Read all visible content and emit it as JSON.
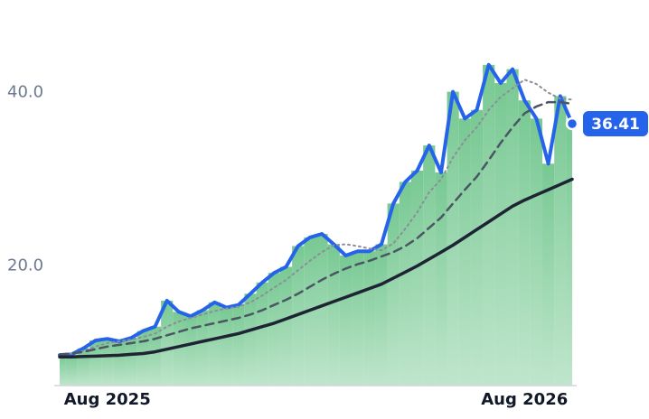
{
  "chart_data": {
    "type": "line",
    "categories": [
      null,
      null,
      null,
      null,
      "Aug 2025",
      null,
      null,
      null,
      null,
      null,
      null,
      null,
      null,
      null,
      null,
      null,
      null,
      null,
      null,
      null,
      null,
      null,
      null,
      null,
      null,
      null,
      null,
      null,
      null,
      null,
      null,
      null,
      null,
      null,
      null,
      null,
      null,
      null,
      null,
      "Aug 2026",
      null,
      null,
      null,
      null
    ],
    "series": [
      {
        "color": "#2563eb",
        "style": "solid",
        "width": 4,
        "area": true,
        "values": [
          9.7,
          9.8,
          10.5,
          11.4,
          11.6,
          11.3,
          11.7,
          12.5,
          13.0,
          16.0,
          14.7,
          14.2,
          14.9,
          15.8,
          15.2,
          15.5,
          16.8,
          18.1,
          19.2,
          19.9,
          22.3,
          23.3,
          23.7,
          22.5,
          21.2,
          21.7,
          21.7,
          22.5,
          27.2,
          29.7,
          31.0,
          33.9,
          30.8,
          40.1,
          37.0,
          38.0,
          43.2,
          41.1,
          42.7,
          39.1,
          37.0,
          31.8,
          39.6,
          36.41
        ],
        "value_labels": [
          null,
          null,
          null,
          null,
          null,
          null,
          null,
          null,
          null,
          null,
          null,
          null,
          null,
          null,
          null,
          null,
          null,
          null,
          null,
          null,
          null,
          null,
          null,
          null,
          null,
          null,
          null,
          null,
          null,
          null,
          null,
          null,
          null,
          null,
          null,
          null,
          null,
          null,
          null,
          null,
          null,
          null,
          null,
          "36.41"
        ]
      },
      {
        "color": "#8a8f99",
        "style": "dotted",
        "width": 2,
        "values": [
          9.8,
          9.9,
          10.2,
          10.7,
          11.1,
          11.3,
          11.5,
          11.8,
          12.2,
          13.0,
          13.6,
          14.0,
          14.4,
          14.8,
          15.1,
          15.3,
          15.8,
          16.6,
          17.5,
          18.4,
          19.5,
          20.6,
          21.6,
          22.4,
          22.5,
          22.3,
          22.0,
          21.8,
          22.6,
          24.3,
          26.2,
          28.5,
          30.0,
          32.5,
          34.5,
          36.0,
          38.0,
          39.5,
          40.5,
          41.5,
          41.0,
          40.0,
          39.3,
          39.2
        ]
      },
      {
        "color": "#4b5563",
        "style": "dashed",
        "width": 2.5,
        "values": [
          9.8,
          9.9,
          10.1,
          10.4,
          10.7,
          10.9,
          11.1,
          11.3,
          11.6,
          12.0,
          12.4,
          12.8,
          13.1,
          13.4,
          13.7,
          14.0,
          14.4,
          14.9,
          15.5,
          16.1,
          16.8,
          17.6,
          18.4,
          19.1,
          19.7,
          20.2,
          20.6,
          21.1,
          21.6,
          22.3,
          23.2,
          24.4,
          25.6,
          27.2,
          28.8,
          30.3,
          32.2,
          34.2,
          36.0,
          37.6,
          38.4,
          38.9,
          38.9,
          38.7
        ]
      },
      {
        "color": "#1e2433",
        "style": "solid",
        "width": 3.5,
        "values": [
          9.5,
          9.5,
          9.55,
          9.6,
          9.65,
          9.7,
          9.8,
          9.9,
          10.1,
          10.4,
          10.7,
          11.0,
          11.3,
          11.6,
          11.9,
          12.2,
          12.6,
          13.0,
          13.4,
          13.9,
          14.4,
          14.9,
          15.4,
          15.9,
          16.4,
          16.9,
          17.4,
          17.9,
          18.6,
          19.3,
          20.0,
          20.8,
          21.6,
          22.4,
          23.3,
          24.2,
          25.1,
          26.0,
          26.9,
          27.6,
          28.2,
          28.8,
          29.4,
          30.0
        ]
      }
    ],
    "area_color": "#6cc48a",
    "ylim": [
      6.2,
      48.6
    ],
    "yticks": [
      {
        "value": 20,
        "label": "20.0"
      },
      {
        "value": 40,
        "label": "40.0"
      }
    ],
    "grid": false
  }
}
